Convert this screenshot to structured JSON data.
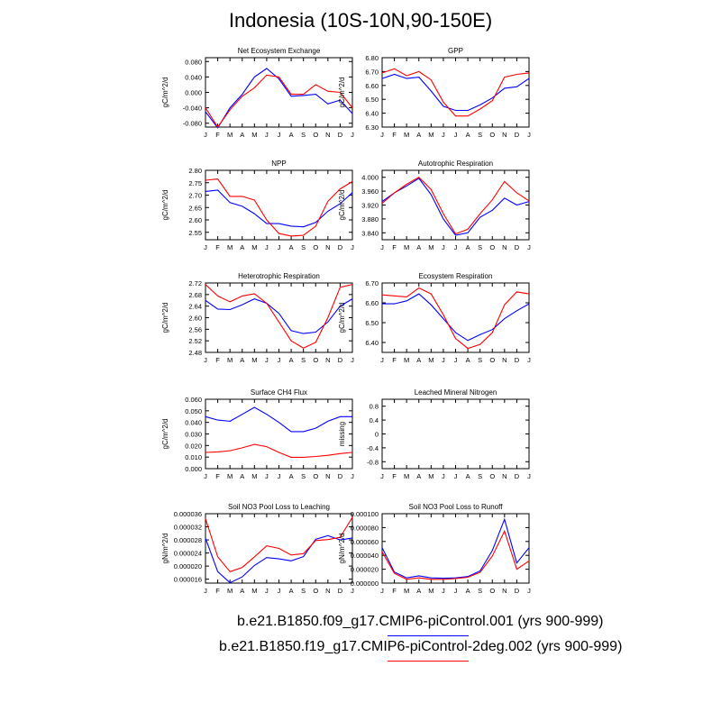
{
  "title": "Indonesia (10S-10N,90-150E)",
  "legend": [
    {
      "label": "b.e21.B1850.f09_g17.CMIP6-piControl.001 (yrs 900-999)",
      "color": "#0000ff"
    },
    {
      "label": "b.e21.B1850.f19_g17.CMIP6-piControl-2deg.002 (yrs 900-999)",
      "color": "#ff0000"
    }
  ],
  "chart_data": [
    {
      "type": "line",
      "title": "Net Ecosystem Exchange",
      "ylabel": "gC/m^2/d",
      "x": [
        "J",
        "F",
        "M",
        "A",
        "M",
        "J",
        "J",
        "A",
        "S",
        "O",
        "N",
        "D",
        "J"
      ],
      "ylim": [
        -0.09,
        0.09
      ],
      "yticks": [
        "0.080",
        "0.040",
        "0.000",
        "-0.040",
        "-0.080"
      ],
      "series": [
        {
          "color": "#0000ff",
          "values": [
            -0.05,
            -0.092,
            -0.04,
            -0.005,
            0.04,
            0.062,
            0.035,
            -0.01,
            -0.008,
            -0.005,
            -0.03,
            -0.02,
            -0.055
          ]
        },
        {
          "color": "#ff0000",
          "values": [
            -0.04,
            -0.09,
            -0.045,
            -0.01,
            0.012,
            0.045,
            0.04,
            -0.005,
            -0.005,
            0.02,
            0.003,
            0.0,
            -0.04
          ]
        }
      ]
    },
    {
      "type": "line",
      "title": "GPP",
      "ylabel": "gC/m^2/d",
      "x": [
        "J",
        "F",
        "M",
        "A",
        "M",
        "J",
        "J",
        "A",
        "S",
        "O",
        "N",
        "D",
        "J"
      ],
      "ylim": [
        6.3,
        6.8
      ],
      "yticks": [
        "6.80",
        "6.70",
        "6.60",
        "6.50",
        "6.40",
        "6.30"
      ],
      "series": [
        {
          "color": "#0000ff",
          "values": [
            6.65,
            6.68,
            6.65,
            6.66,
            6.56,
            6.45,
            6.42,
            6.42,
            6.46,
            6.51,
            6.58,
            6.59,
            6.65
          ]
        },
        {
          "color": "#ff0000",
          "values": [
            6.69,
            6.72,
            6.67,
            6.7,
            6.64,
            6.48,
            6.38,
            6.38,
            6.43,
            6.49,
            6.66,
            6.68,
            6.69
          ]
        }
      ]
    },
    {
      "type": "line",
      "title": "NPP",
      "ylabel": "gC/m^2/d",
      "x": [
        "J",
        "F",
        "M",
        "A",
        "M",
        "J",
        "J",
        "A",
        "S",
        "O",
        "N",
        "D",
        "J"
      ],
      "ylim": [
        2.52,
        2.8
      ],
      "yticks": [
        "2.80",
        "2.75",
        "2.70",
        "2.65",
        "2.60",
        "2.55"
      ],
      "series": [
        {
          "color": "#0000ff",
          "values": [
            2.715,
            2.72,
            2.67,
            2.655,
            2.625,
            2.585,
            2.585,
            2.575,
            2.572,
            2.59,
            2.635,
            2.665,
            2.71
          ]
        },
        {
          "color": "#ff0000",
          "values": [
            2.76,
            2.765,
            2.695,
            2.695,
            2.68,
            2.6,
            2.545,
            2.535,
            2.538,
            2.575,
            2.675,
            2.725,
            2.755
          ]
        }
      ]
    },
    {
      "type": "line",
      "title": "Autotrophic Respiration",
      "ylabel": "gC/m^2/d",
      "x": [
        "J",
        "F",
        "M",
        "A",
        "M",
        "J",
        "J",
        "A",
        "S",
        "O",
        "N",
        "D",
        "J"
      ],
      "ylim": [
        3.82,
        4.02
      ],
      "yticks": [
        "4.000",
        "3.960",
        "3.920",
        "3.880",
        "3.840"
      ],
      "series": [
        {
          "color": "#0000ff",
          "values": [
            3.93,
            3.955,
            3.975,
            3.997,
            3.95,
            3.88,
            3.833,
            3.84,
            3.885,
            3.905,
            3.94,
            3.92,
            3.93
          ]
        },
        {
          "color": "#ff0000",
          "values": [
            3.925,
            3.955,
            3.98,
            4.0,
            3.965,
            3.895,
            3.837,
            3.85,
            3.895,
            3.935,
            3.988,
            3.955,
            3.932
          ]
        }
      ]
    },
    {
      "type": "line",
      "title": "Heterotrophic Respiration",
      "ylabel": "gC/m^2/d",
      "x": [
        "J",
        "F",
        "M",
        "A",
        "M",
        "J",
        "J",
        "A",
        "S",
        "O",
        "N",
        "D",
        "J"
      ],
      "ylim": [
        2.48,
        2.72
      ],
      "yticks": [
        "2.72",
        "2.68",
        "2.64",
        "2.60",
        "2.56",
        "2.52",
        "2.48"
      ],
      "series": [
        {
          "color": "#0000ff",
          "values": [
            2.66,
            2.63,
            2.628,
            2.645,
            2.665,
            2.65,
            2.615,
            2.555,
            2.545,
            2.55,
            2.585,
            2.64,
            2.665
          ]
        },
        {
          "color": "#ff0000",
          "values": [
            2.715,
            2.675,
            2.655,
            2.675,
            2.683,
            2.65,
            2.585,
            2.52,
            2.495,
            2.515,
            2.6,
            2.705,
            2.715
          ]
        }
      ]
    },
    {
      "type": "line",
      "title": "Ecosystem Respiration",
      "ylabel": "gC/m^2/d",
      "x": [
        "J",
        "F",
        "M",
        "A",
        "M",
        "J",
        "J",
        "A",
        "S",
        "O",
        "N",
        "D",
        "J"
      ],
      "ylim": [
        6.35,
        6.7
      ],
      "yticks": [
        "6.70",
        "6.60",
        "6.50",
        "6.40"
      ],
      "series": [
        {
          "color": "#0000ff",
          "values": [
            6.595,
            6.595,
            6.61,
            6.645,
            6.59,
            6.52,
            6.45,
            6.41,
            6.44,
            6.465,
            6.52,
            6.56,
            6.595
          ]
        },
        {
          "color": "#ff0000",
          "values": [
            6.64,
            6.635,
            6.63,
            6.675,
            6.645,
            6.54,
            6.42,
            6.37,
            6.39,
            6.45,
            6.59,
            6.655,
            6.645
          ]
        }
      ]
    },
    {
      "type": "line",
      "title": "Surface CH4 Flux",
      "ylabel": "gC/m^2/d",
      "x": [
        "J",
        "F",
        "M",
        "A",
        "M",
        "J",
        "J",
        "A",
        "S",
        "O",
        "N",
        "D",
        "J"
      ],
      "ylim": [
        0.0,
        0.06
      ],
      "yticks": [
        "0.060",
        "0.050",
        "0.040",
        "0.030",
        "0.020",
        "0.010",
        "0.000"
      ],
      "series": [
        {
          "color": "#0000ff",
          "values": [
            0.045,
            0.042,
            0.041,
            0.047,
            0.053,
            0.047,
            0.04,
            0.032,
            0.032,
            0.035,
            0.041,
            0.045,
            0.045
          ]
        },
        {
          "color": "#ff0000",
          "values": [
            0.014,
            0.0145,
            0.0155,
            0.018,
            0.021,
            0.019,
            0.014,
            0.0098,
            0.0098,
            0.0105,
            0.0115,
            0.013,
            0.014
          ]
        }
      ]
    },
    {
      "type": "line",
      "title": "Leached Mineral Nitrogen",
      "ylabel": "missing",
      "x": [
        "J",
        "F",
        "M",
        "A",
        "M",
        "J",
        "J",
        "A",
        "S",
        "O",
        "N",
        "D",
        "J"
      ],
      "ylim": [
        -1.0,
        1.0
      ],
      "yticks": [
        "0.8",
        "0.4",
        "0",
        "-0.4",
        "-0.8"
      ],
      "series": []
    },
    {
      "type": "line",
      "title": "Soil NO3 Pool Loss to Leaching",
      "ylabel": "gN/m^2/d",
      "x": [
        "J",
        "F",
        "M",
        "A",
        "M",
        "J",
        "J",
        "A",
        "S",
        "O",
        "N",
        "D",
        "J"
      ],
      "ylim": [
        1.48e-05,
        3.6e-05
      ],
      "yticks": [
        "0.000036",
        "0.000032",
        "0.000028",
        "0.000024",
        "0.000020",
        "0.000016"
      ],
      "series": [
        {
          "color": "#0000ff",
          "values": [
            2.85e-05,
            1.83e-05,
            1.49e-05,
            1.67e-05,
            2.02e-05,
            2.26e-05,
            2.22e-05,
            2.16e-05,
            2.29e-05,
            2.82e-05,
            2.93e-05,
            2.8e-05,
            2.86e-05
          ]
        },
        {
          "color": "#ff0000",
          "values": [
            3.45e-05,
            2.28e-05,
            1.83e-05,
            1.96e-05,
            2.28e-05,
            2.62e-05,
            2.54e-05,
            2.34e-05,
            2.38e-05,
            2.78e-05,
            2.81e-05,
            2.88e-05,
            3.49e-05
          ]
        }
      ]
    },
    {
      "type": "line",
      "title": "Soil NO3 Pool Loss to Runoff",
      "ylabel": "gN/m^2/d",
      "x": [
        "J",
        "F",
        "M",
        "A",
        "M",
        "J",
        "J",
        "A",
        "S",
        "O",
        "N",
        "D",
        "J"
      ],
      "ylim": [
        0.0,
        0.0001
      ],
      "yticks": [
        "0.000100",
        "0.000080",
        "0.000060",
        "0.000040",
        "0.000020",
        "0.000000"
      ],
      "series": [
        {
          "color": "#0000ff",
          "values": [
            5.1e-05,
            1.6e-05,
            7.5e-06,
            1.05e-05,
            7.5e-06,
            7e-06,
            7.5e-06,
            9.5e-06,
            1.75e-05,
            4.7e-05,
            9.2e-05,
            2.9e-05,
            5.1e-05
          ]
        },
        {
          "color": "#ff0000",
          "values": [
            4.5e-05,
            1.4e-05,
            5.5e-06,
            7.5e-06,
            5.5e-06,
            5.5e-06,
            6.5e-06,
            8.5e-06,
            1.55e-05,
            3.9e-05,
            7.5e-05,
            2e-05,
            3.2e-05
          ]
        }
      ]
    }
  ]
}
